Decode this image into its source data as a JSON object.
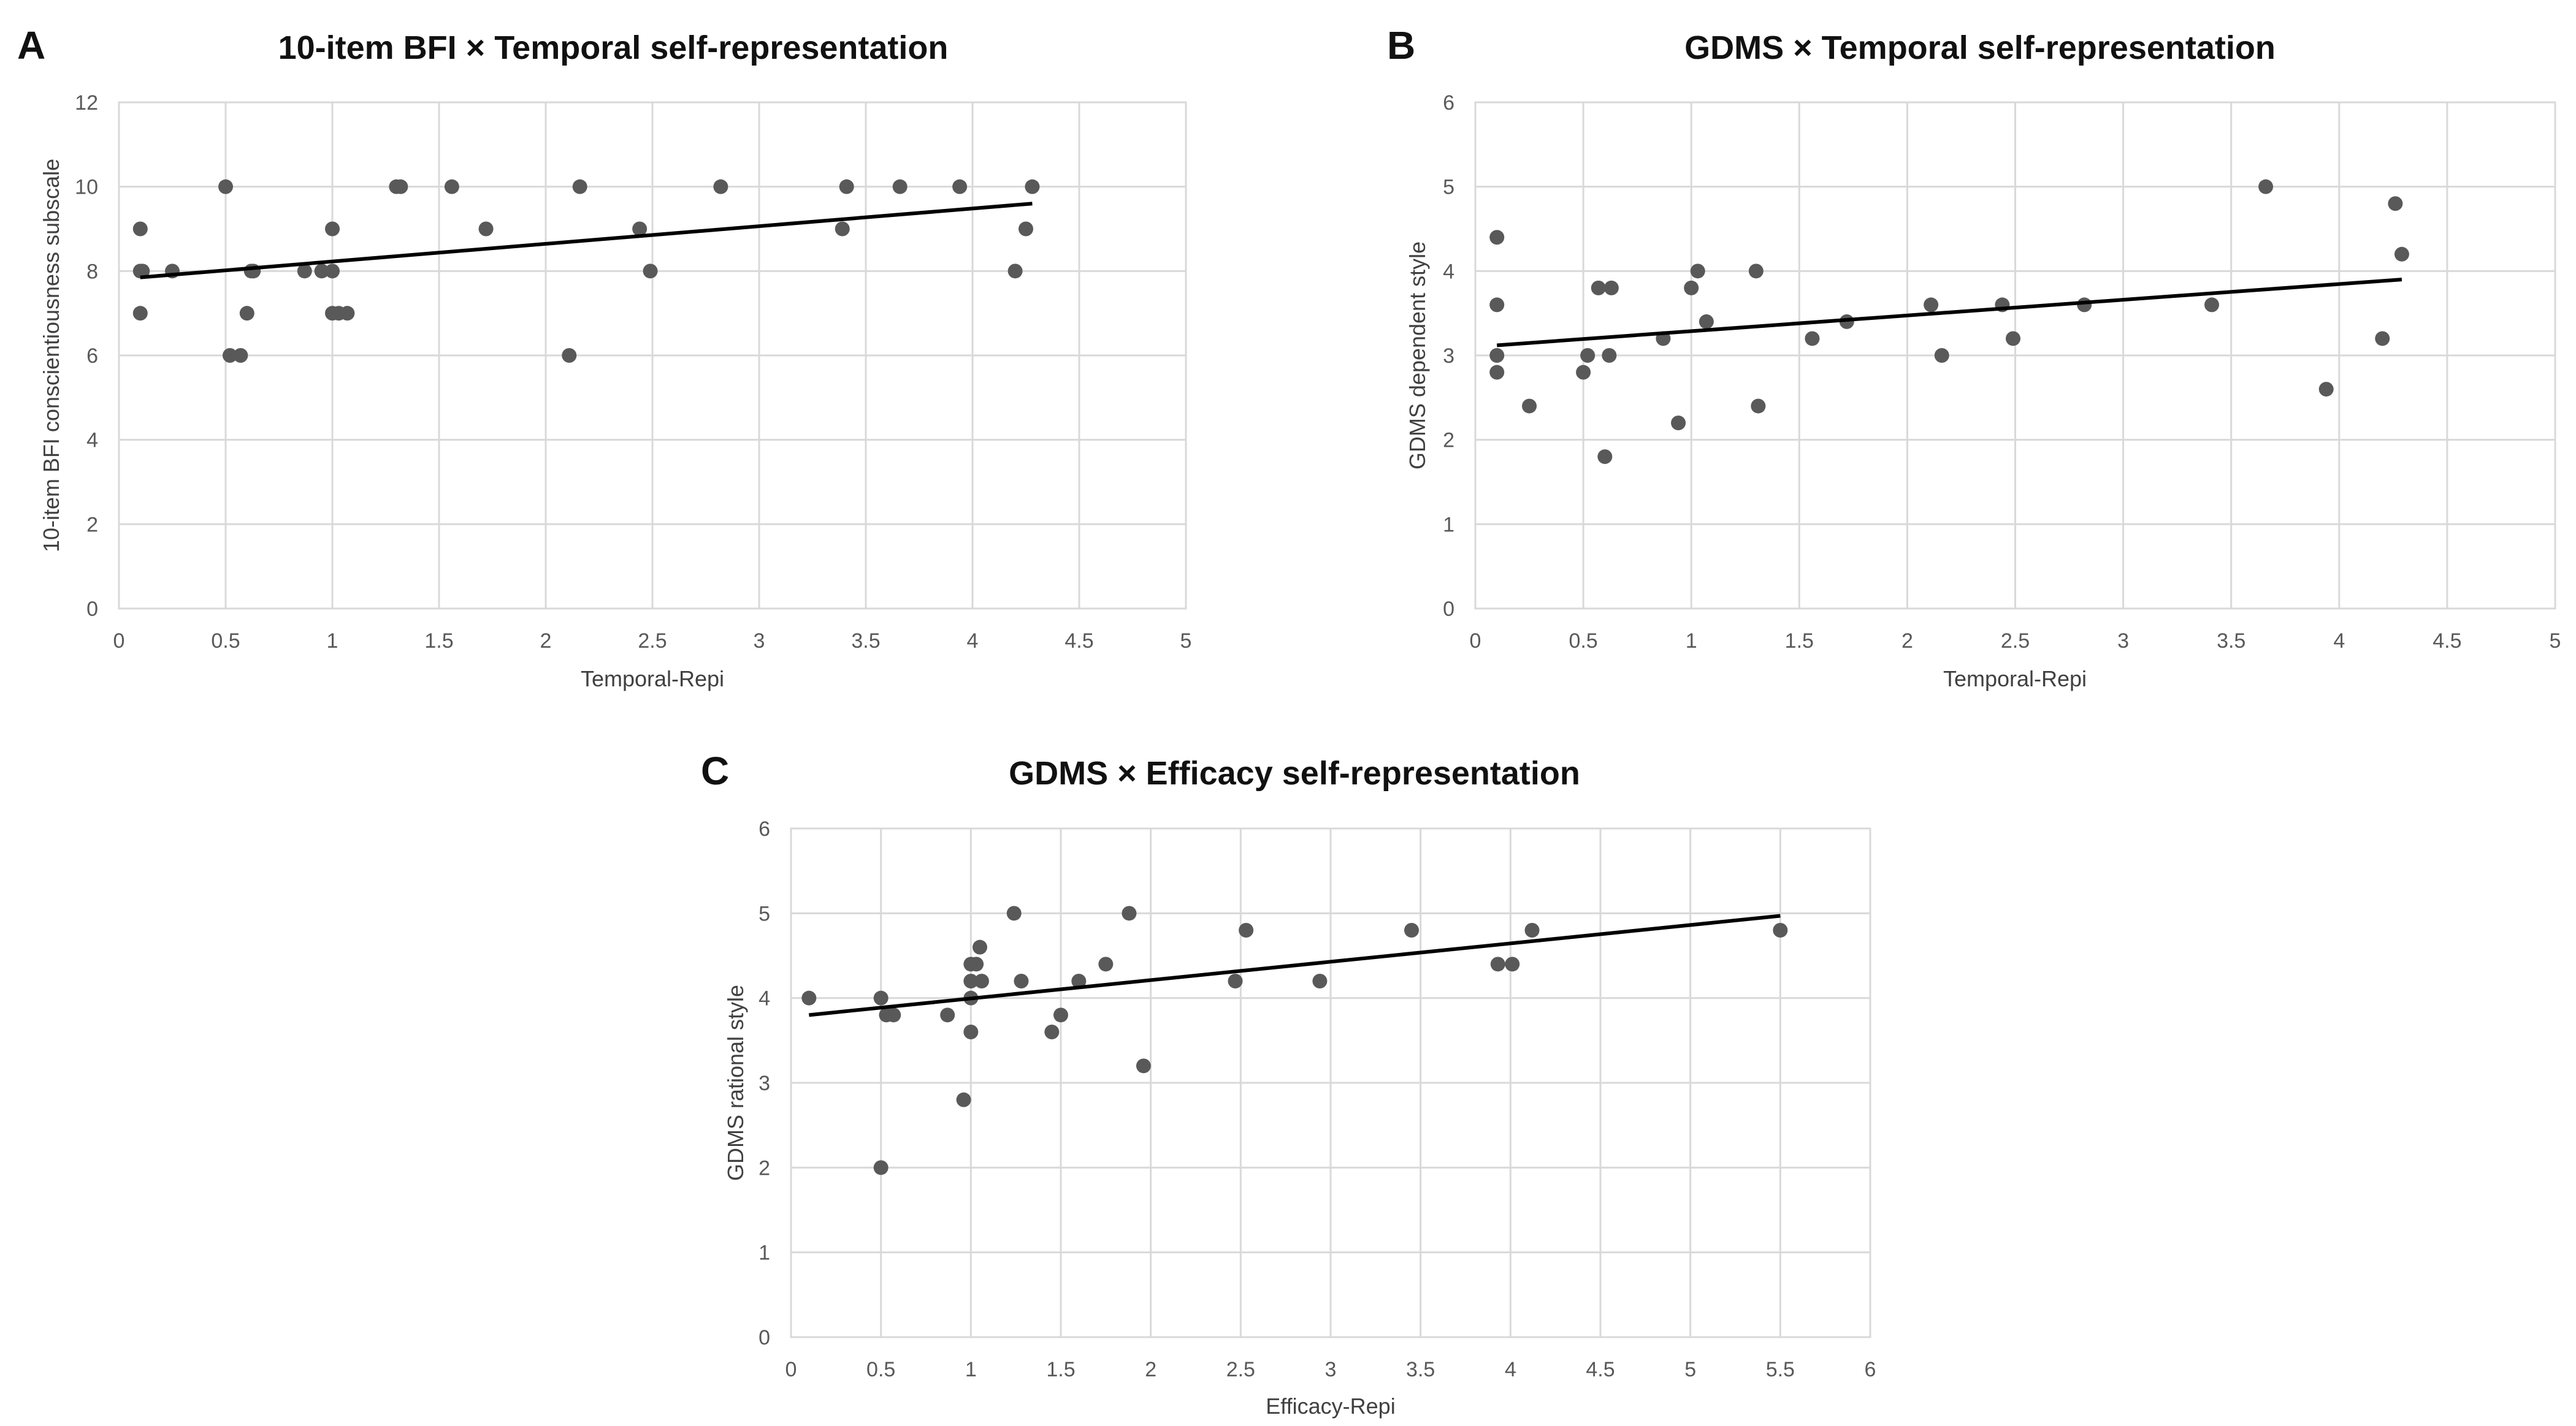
{
  "figure": {
    "colors": {
      "point": "#595959",
      "trend": "#000000",
      "grid": "#d9d9d9",
      "tick_text": "#595959",
      "axis_text": "#404040",
      "title_text": "#111111"
    }
  },
  "chart_data": [
    {
      "id": "A",
      "panel": "A",
      "type": "scatter",
      "title": "10-item BFI × Temporal self-representation",
      "xlabel": "Temporal-Repi",
      "ylabel": "10-item BFI conscientiousness subscale",
      "xlim": [
        0,
        5
      ],
      "ylim": [
        0,
        12
      ],
      "xticks": [
        0,
        0.5,
        1,
        1.5,
        2,
        2.5,
        3,
        3.5,
        4,
        4.5,
        5
      ],
      "yticks": [
        0,
        2,
        4,
        6,
        8,
        10,
        12
      ],
      "grid": true,
      "legend": "none",
      "points": [
        [
          0.1,
          9
        ],
        [
          0.1,
          8
        ],
        [
          0.11,
          8
        ],
        [
          0.1,
          7
        ],
        [
          0.25,
          8
        ],
        [
          0.5,
          10
        ],
        [
          0.52,
          6
        ],
        [
          0.57,
          6
        ],
        [
          0.6,
          7
        ],
        [
          0.62,
          8
        ],
        [
          0.63,
          8
        ],
        [
          0.87,
          8
        ],
        [
          0.95,
          8
        ],
        [
          1.0,
          9
        ],
        [
          1.0,
          8
        ],
        [
          1.0,
          7
        ],
        [
          1.03,
          7
        ],
        [
          1.07,
          7
        ],
        [
          1.3,
          10
        ],
        [
          1.32,
          10
        ],
        [
          1.56,
          10
        ],
        [
          1.72,
          9
        ],
        [
          2.11,
          6
        ],
        [
          2.16,
          10
        ],
        [
          2.44,
          9
        ],
        [
          2.49,
          8
        ],
        [
          2.82,
          10
        ],
        [
          3.39,
          9
        ],
        [
          3.41,
          10
        ],
        [
          3.66,
          10
        ],
        [
          3.94,
          10
        ],
        [
          4.2,
          8
        ],
        [
          4.25,
          9
        ],
        [
          4.28,
          10
        ]
      ],
      "trendline": [
        [
          0.1,
          7.85
        ],
        [
          4.28,
          9.6
        ]
      ]
    },
    {
      "id": "B",
      "panel": "B",
      "type": "scatter",
      "title": "GDMS × Temporal self-representation",
      "xlabel": "Temporal-Repi",
      "ylabel": "GDMS dependent style",
      "xlim": [
        0,
        5
      ],
      "ylim": [
        0,
        6
      ],
      "xticks": [
        0,
        0.5,
        1,
        1.5,
        2,
        2.5,
        3,
        3.5,
        4,
        4.5,
        5
      ],
      "yticks": [
        0,
        1,
        2,
        3,
        4,
        5,
        6
      ],
      "grid": true,
      "legend": "none",
      "points": [
        [
          0.1,
          4.4
        ],
        [
          0.1,
          3.6
        ],
        [
          0.1,
          3.0
        ],
        [
          0.1,
          2.8
        ],
        [
          0.25,
          2.4
        ],
        [
          0.5,
          2.8
        ],
        [
          0.52,
          3.0
        ],
        [
          0.57,
          3.8
        ],
        [
          0.6,
          1.8
        ],
        [
          0.62,
          3.0
        ],
        [
          0.63,
          3.8
        ],
        [
          0.87,
          3.2
        ],
        [
          0.94,
          2.2
        ],
        [
          1.0,
          3.8
        ],
        [
          1.03,
          4.0
        ],
        [
          1.07,
          3.4
        ],
        [
          1.3,
          4.0
        ],
        [
          1.31,
          2.4
        ],
        [
          1.56,
          3.2
        ],
        [
          1.72,
          3.4
        ],
        [
          2.11,
          3.6
        ],
        [
          2.16,
          3.0
        ],
        [
          2.44,
          3.6
        ],
        [
          2.49,
          3.2
        ],
        [
          2.82,
          3.6
        ],
        [
          3.41,
          3.6
        ],
        [
          3.66,
          5.0
        ],
        [
          3.94,
          2.6
        ],
        [
          4.2,
          3.2
        ],
        [
          4.26,
          4.8
        ],
        [
          4.29,
          4.2
        ]
      ],
      "trendline": [
        [
          0.1,
          3.12
        ],
        [
          4.29,
          3.9
        ]
      ]
    },
    {
      "id": "C",
      "panel": "C",
      "type": "scatter",
      "title": "GDMS × Efficacy self-representation",
      "xlabel": "Efficacy-Repi",
      "ylabel": "GDMS rational style",
      "xlim": [
        0,
        6
      ],
      "ylim": [
        0,
        6
      ],
      "xticks": [
        0,
        0.5,
        1,
        1.5,
        2,
        2.5,
        3,
        3.5,
        4,
        4.5,
        5,
        5.5,
        6
      ],
      "yticks": [
        0,
        1,
        2,
        3,
        4,
        5,
        6
      ],
      "grid": true,
      "legend": "none",
      "points": [
        [
          0.1,
          4.0
        ],
        [
          0.5,
          4.0
        ],
        [
          0.5,
          2.0
        ],
        [
          0.53,
          3.8
        ],
        [
          0.57,
          3.8
        ],
        [
          0.87,
          3.8
        ],
        [
          0.96,
          2.8
        ],
        [
          1.0,
          4.4
        ],
        [
          1.0,
          4.2
        ],
        [
          1.0,
          4.0
        ],
        [
          1.0,
          3.6
        ],
        [
          1.03,
          4.4
        ],
        [
          1.05,
          4.6
        ],
        [
          1.06,
          4.2
        ],
        [
          1.24,
          5.0
        ],
        [
          1.28,
          4.2
        ],
        [
          1.45,
          3.6
        ],
        [
          1.5,
          3.8
        ],
        [
          1.6,
          4.2
        ],
        [
          1.75,
          4.4
        ],
        [
          1.88,
          5.0
        ],
        [
          1.96,
          3.2
        ],
        [
          2.47,
          4.2
        ],
        [
          2.53,
          4.8
        ],
        [
          2.94,
          4.2
        ],
        [
          3.45,
          4.8
        ],
        [
          3.93,
          4.4
        ],
        [
          4.01,
          4.4
        ],
        [
          4.12,
          4.8
        ],
        [
          5.5,
          4.8
        ]
      ],
      "trendline": [
        [
          0.1,
          3.8
        ],
        [
          5.5,
          4.97
        ]
      ]
    }
  ]
}
